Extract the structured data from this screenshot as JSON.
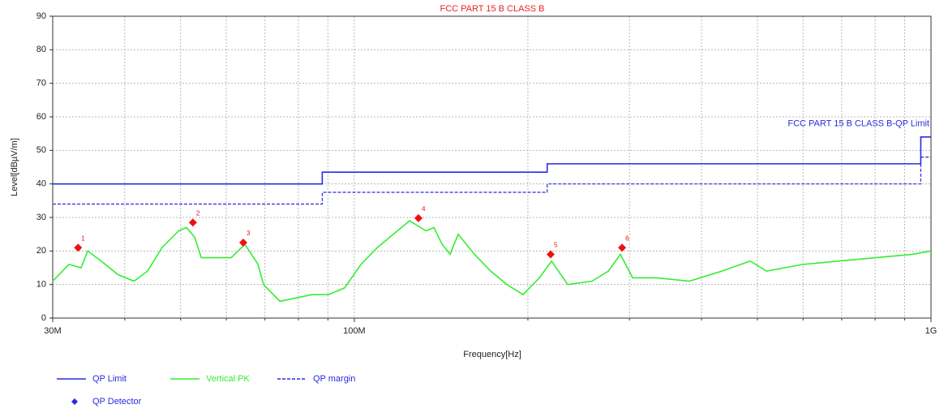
{
  "chart_data": {
    "type": "line",
    "title": "FCC PART 15 B CLASS B",
    "xlabel": "Frequency[Hz]",
    "ylabel": "Level[dBµV/m]",
    "xscale": "log",
    "xlim": [
      30000000,
      1000000000
    ],
    "ylim": [
      0,
      90
    ],
    "xticks": [
      {
        "value": 30000000,
        "label": "30M"
      },
      {
        "value": 100000000,
        "label": "100M"
      },
      {
        "value": 1000000000,
        "label": "1G"
      }
    ],
    "xminor_ticks": [
      40000000,
      50000000,
      60000000,
      70000000,
      80000000,
      90000000,
      200000000,
      300000000,
      400000000,
      500000000,
      600000000,
      700000000,
      800000000,
      900000000
    ],
    "yticks": [
      0,
      10,
      20,
      30,
      40,
      50,
      60,
      70,
      80,
      90
    ],
    "grid": true,
    "series": [
      {
        "name": "QP Limit",
        "color": "#2a2ae0",
        "style": "solid",
        "x": [
          30000000,
          88000000,
          88000000,
          216000000,
          216000000,
          960000000,
          960000000,
          1000000000
        ],
        "values": [
          40,
          40,
          43.5,
          43.5,
          46,
          46,
          54,
          54
        ]
      },
      {
        "name": "Vertical PK",
        "color": "#33ee33",
        "style": "solid",
        "x": [
          30000000,
          32000000,
          33600000,
          34500000,
          36400000,
          38900000,
          41500000,
          43800000,
          46400000,
          49600000,
          51200000,
          52900000,
          54300000,
          57300000,
          61200000,
          64600000,
          68100000,
          69600000,
          74300000,
          79300000,
          84500000,
          90200000,
          96200000,
          102700000,
          109600000,
          116900000,
          124700000,
          133100000,
          137400000,
          142000000,
          146600000,
          151400000,
          161600000,
          172400000,
          183900000,
          196200000,
          209400000,
          219800000,
          234500000,
          258400000,
          275700000,
          289400000,
          303800000,
          334800000,
          381000000,
          433800000,
          485800000,
          518400000,
          599500000,
          693700000,
          802600000,
          928600000,
          1000000000
        ],
        "values": [
          11,
          16,
          15,
          20,
          17,
          13,
          11,
          14,
          21,
          26,
          27,
          24,
          18,
          18,
          18,
          22,
          16,
          10,
          5,
          6,
          7,
          7,
          9,
          16,
          21,
          25,
          29,
          26,
          27,
          22,
          19,
          25,
          19,
          14,
          10,
          7,
          12,
          17,
          10,
          11,
          14,
          19,
          12,
          12,
          11,
          14,
          17,
          14,
          16,
          17,
          18,
          19,
          20
        ]
      },
      {
        "name": "QP margin",
        "color": "#2a2ae0",
        "style": "dashed",
        "x": [
          30000000,
          88000000,
          88000000,
          216000000,
          216000000,
          960000000,
          960000000,
          1000000000
        ],
        "values": [
          34,
          34,
          37.5,
          37.5,
          40,
          40,
          48,
          48
        ]
      },
      {
        "name": "QP Detector",
        "color": "#ee1111",
        "legend_color": "#2a2ae0",
        "marker": "diamond",
        "x": [
          33200000,
          52500000,
          64200000,
          129200000,
          219000000,
          291300000
        ],
        "values": [
          21,
          28.5,
          22.5,
          29.8,
          19,
          21
        ],
        "labels": [
          "1",
          "2",
          "3",
          "4",
          "5",
          "6"
        ]
      }
    ],
    "annotations": [
      {
        "text": "FCC PART 15 B CLASS B-QP Limit",
        "series": 0
      }
    ]
  }
}
